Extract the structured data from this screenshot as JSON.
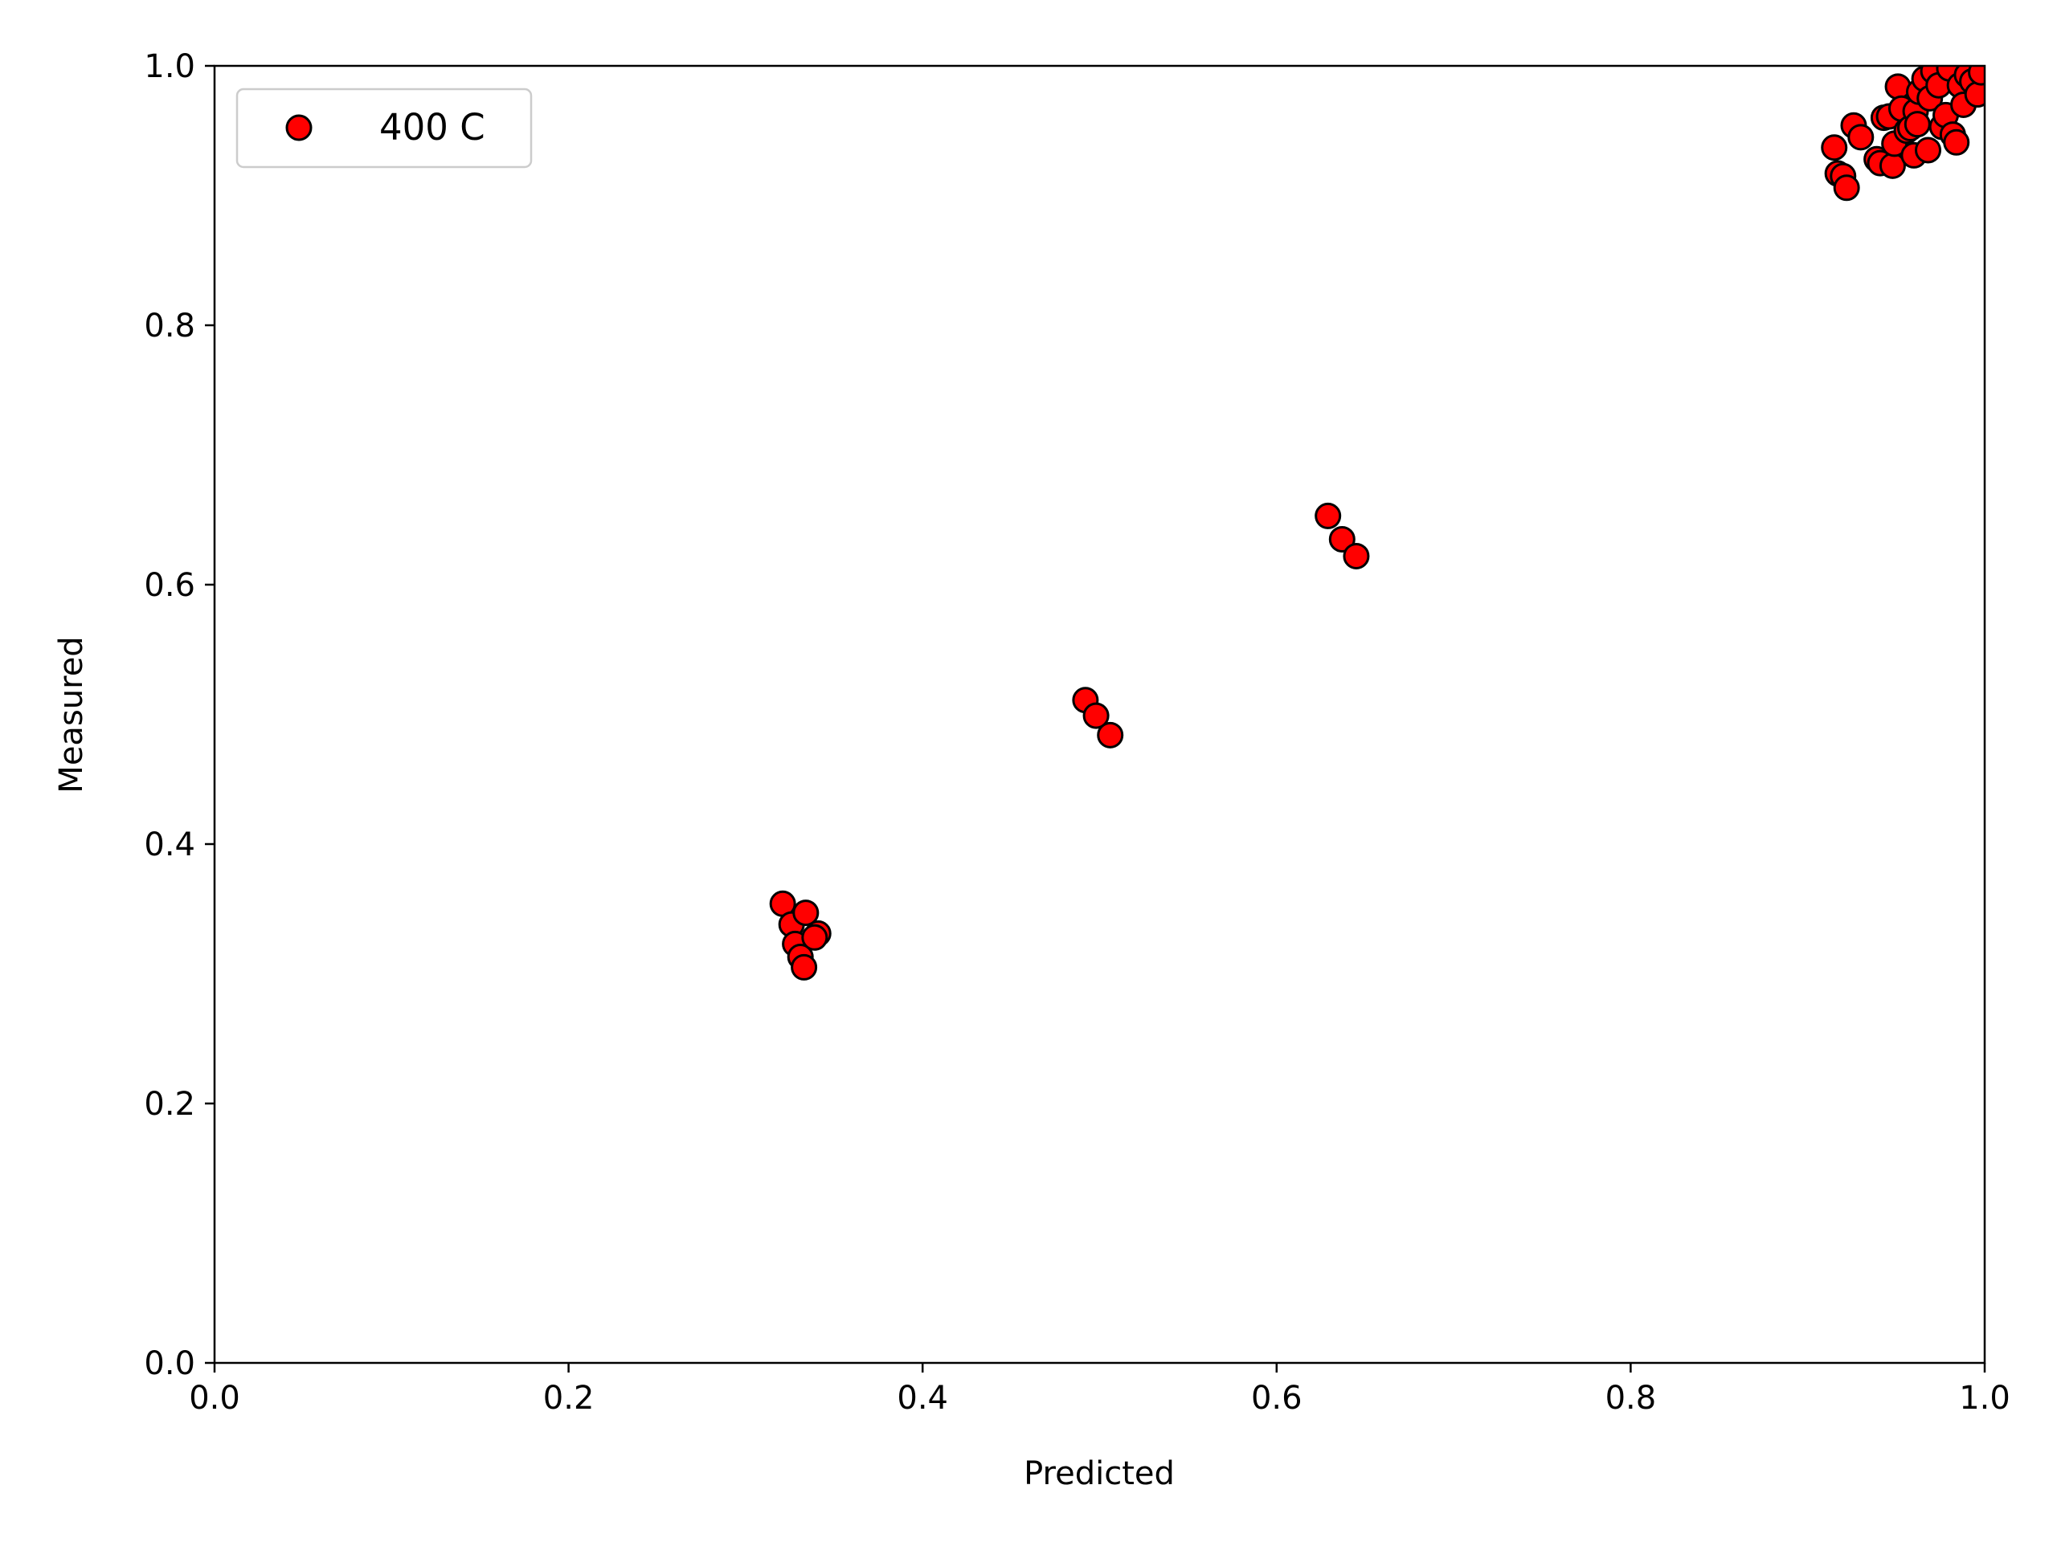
{
  "chart_data": {
    "type": "scatter",
    "title": "",
    "xlabel": "Predicted",
    "ylabel": "Measured",
    "xlim": [
      0.0,
      1.0
    ],
    "ylim": [
      0.0,
      1.0
    ],
    "x_ticks": [
      "0.0",
      "0.2",
      "0.4",
      "0.6",
      "0.8",
      "1.0"
    ],
    "y_ticks": [
      "0.0",
      "0.2",
      "0.4",
      "0.6",
      "0.8",
      "1.0"
    ],
    "grid": false,
    "legend_position": "upper-left",
    "series": [
      {
        "name": "400 C",
        "color": "#ff0000",
        "edge_color": "#000000",
        "marker": "circle",
        "points": [
          [
            0.321,
            0.354
          ],
          [
            0.326,
            0.338
          ],
          [
            0.334,
            0.347
          ],
          [
            0.341,
            0.331
          ],
          [
            0.328,
            0.323
          ],
          [
            0.331,
            0.313
          ],
          [
            0.333,
            0.305
          ],
          [
            0.339,
            0.328
          ],
          [
            0.492,
            0.511
          ],
          [
            0.498,
            0.499
          ],
          [
            0.506,
            0.484
          ],
          [
            0.629,
            0.653
          ],
          [
            0.637,
            0.635
          ],
          [
            0.645,
            0.622
          ],
          [
            0.915,
            0.937
          ],
          [
            0.917,
            0.917
          ],
          [
            0.92,
            0.915
          ],
          [
            0.922,
            0.906
          ],
          [
            0.926,
            0.954
          ],
          [
            0.93,
            0.945
          ],
          [
            0.939,
            0.928
          ],
          [
            0.941,
            0.925
          ],
          [
            0.943,
            0.96
          ],
          [
            0.946,
            0.961
          ],
          [
            0.948,
            0.923
          ],
          [
            0.949,
            0.94
          ],
          [
            0.951,
            0.984
          ],
          [
            0.953,
            0.967
          ],
          [
            0.956,
            0.95
          ],
          [
            0.958,
            0.952
          ],
          [
            0.96,
            0.931
          ],
          [
            0.961,
            0.965
          ],
          [
            0.963,
            0.98
          ],
          [
            0.966,
            0.99
          ],
          [
            0.969,
            0.975
          ],
          [
            0.971,
            0.996
          ],
          [
            0.974,
            0.985
          ],
          [
            0.976,
            0.953
          ],
          [
            0.978,
            0.962
          ],
          [
            0.98,
            0.998
          ],
          [
            0.982,
            0.947
          ],
          [
            0.984,
            0.941
          ],
          [
            0.986,
            0.985
          ],
          [
            0.988,
            0.97
          ],
          [
            0.99,
            0.993
          ],
          [
            0.993,
            0.988
          ],
          [
            0.996,
            0.978
          ],
          [
            0.998,
            0.995
          ],
          [
            0.962,
            0.955
          ],
          [
            0.968,
            0.935
          ]
        ]
      }
    ]
  }
}
